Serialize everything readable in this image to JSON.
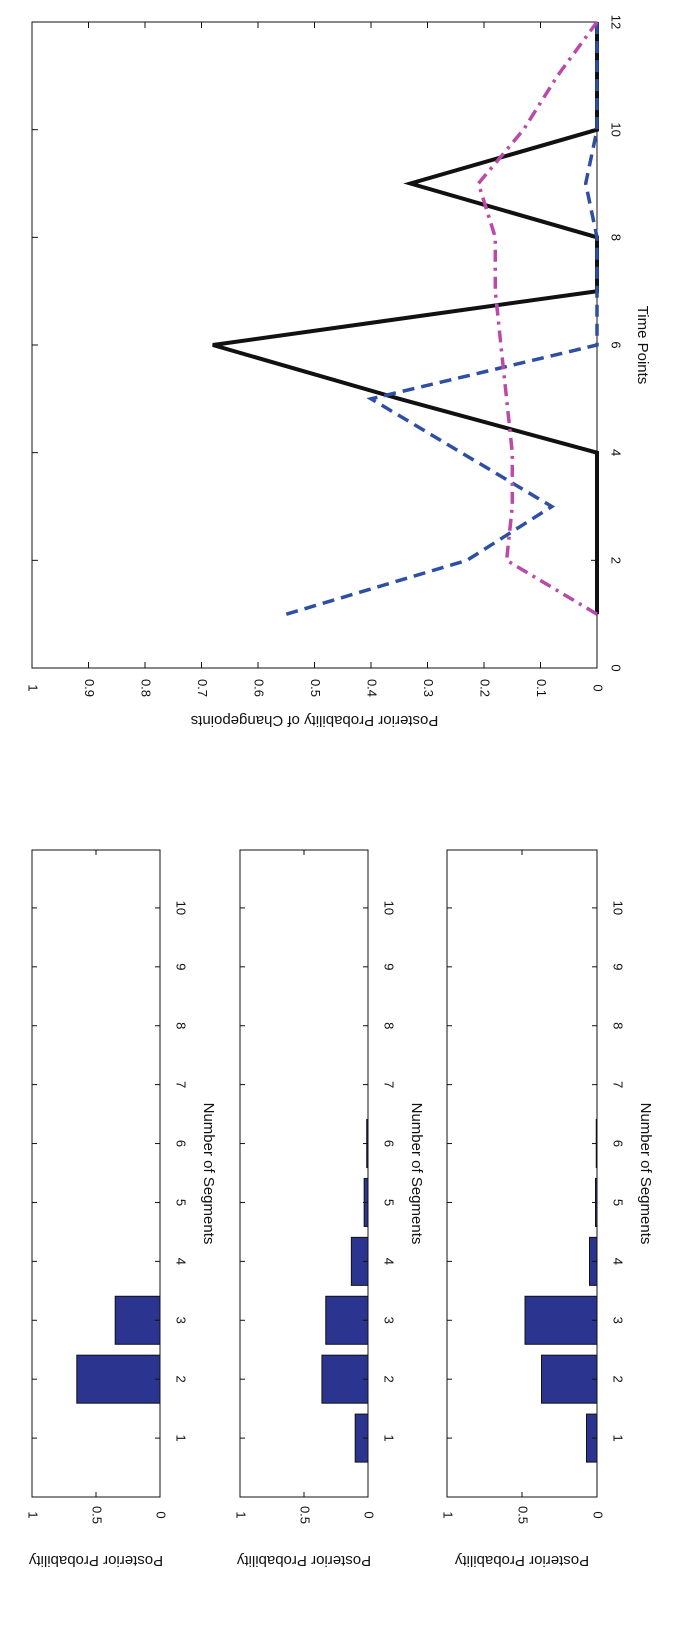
{
  "chart_data": [
    {
      "type": "bar",
      "categories": [
        "1",
        "2",
        "3",
        "4",
        "5",
        "6",
        "7",
        "8",
        "9",
        "10"
      ],
      "values": [
        0,
        0.65,
        0.35,
        0,
        0,
        0,
        0,
        0,
        0,
        0
      ],
      "xlabel": "Number of Segments",
      "ylabel": "Posterior Probability",
      "ylim": [
        0,
        1
      ],
      "yticks": [
        "0",
        "0.5",
        "1"
      ],
      "bar_color": "#2b3590"
    },
    {
      "type": "bar",
      "categories": [
        "1",
        "2",
        "3",
        "4",
        "5",
        "6",
        "7",
        "8",
        "9",
        "10"
      ],
      "values": [
        0.1,
        0.36,
        0.33,
        0.13,
        0.03,
        0.01,
        0,
        0,
        0,
        0
      ],
      "xlabel": "Number of Segments",
      "ylabel": "Posterior Probability",
      "ylim": [
        0,
        1
      ],
      "yticks": [
        "0",
        "0.5",
        "1"
      ],
      "bar_color": "#2b3590"
    },
    {
      "type": "bar",
      "categories": [
        "1",
        "2",
        "3",
        "4",
        "5",
        "6",
        "7",
        "8",
        "9",
        "10"
      ],
      "values": [
        0.07,
        0.37,
        0.48,
        0.05,
        0.01,
        0.005,
        0,
        0,
        0,
        0
      ],
      "xlabel": "Number of Segments",
      "ylabel": "Posterior Probability",
      "ylim": [
        0,
        1
      ],
      "yticks": [
        "0",
        "0.5",
        "1"
      ],
      "bar_color": "#2b3590"
    },
    {
      "type": "line",
      "x": [
        1,
        2,
        3,
        4,
        5,
        6,
        7,
        8,
        9,
        10,
        11,
        12
      ],
      "xlabel": "Time Points",
      "ylabel": "Posterior Probability of Changepoints",
      "xlim": [
        0,
        12
      ],
      "ylim": [
        0,
        1
      ],
      "xticks": [
        0,
        2,
        4,
        6,
        8,
        10,
        12
      ],
      "yticks": [
        0,
        0.1,
        0.2,
        0.3,
        0.4,
        0.5,
        0.6,
        0.7,
        0.8,
        0.9,
        1
      ],
      "series": [
        {
          "values": [
            0,
            0,
            0,
            0,
            0.35,
            0.68,
            0,
            0,
            0.33,
            0,
            0,
            0
          ],
          "color": "#111111",
          "style": "solid"
        },
        {
          "values": [
            0.55,
            0.23,
            0.08,
            0.24,
            0.4,
            0,
            0,
            0,
            0.02,
            0,
            0,
            0
          ],
          "color": "#2f4fa3",
          "style": "dashed"
        },
        {
          "values": [
            0,
            0.16,
            0.15,
            0.15,
            0.16,
            0.17,
            0.18,
            0.18,
            0.21,
            0.13,
            0.07,
            0
          ],
          "color": "#b94aa8",
          "style": "dashdot"
        }
      ]
    }
  ]
}
